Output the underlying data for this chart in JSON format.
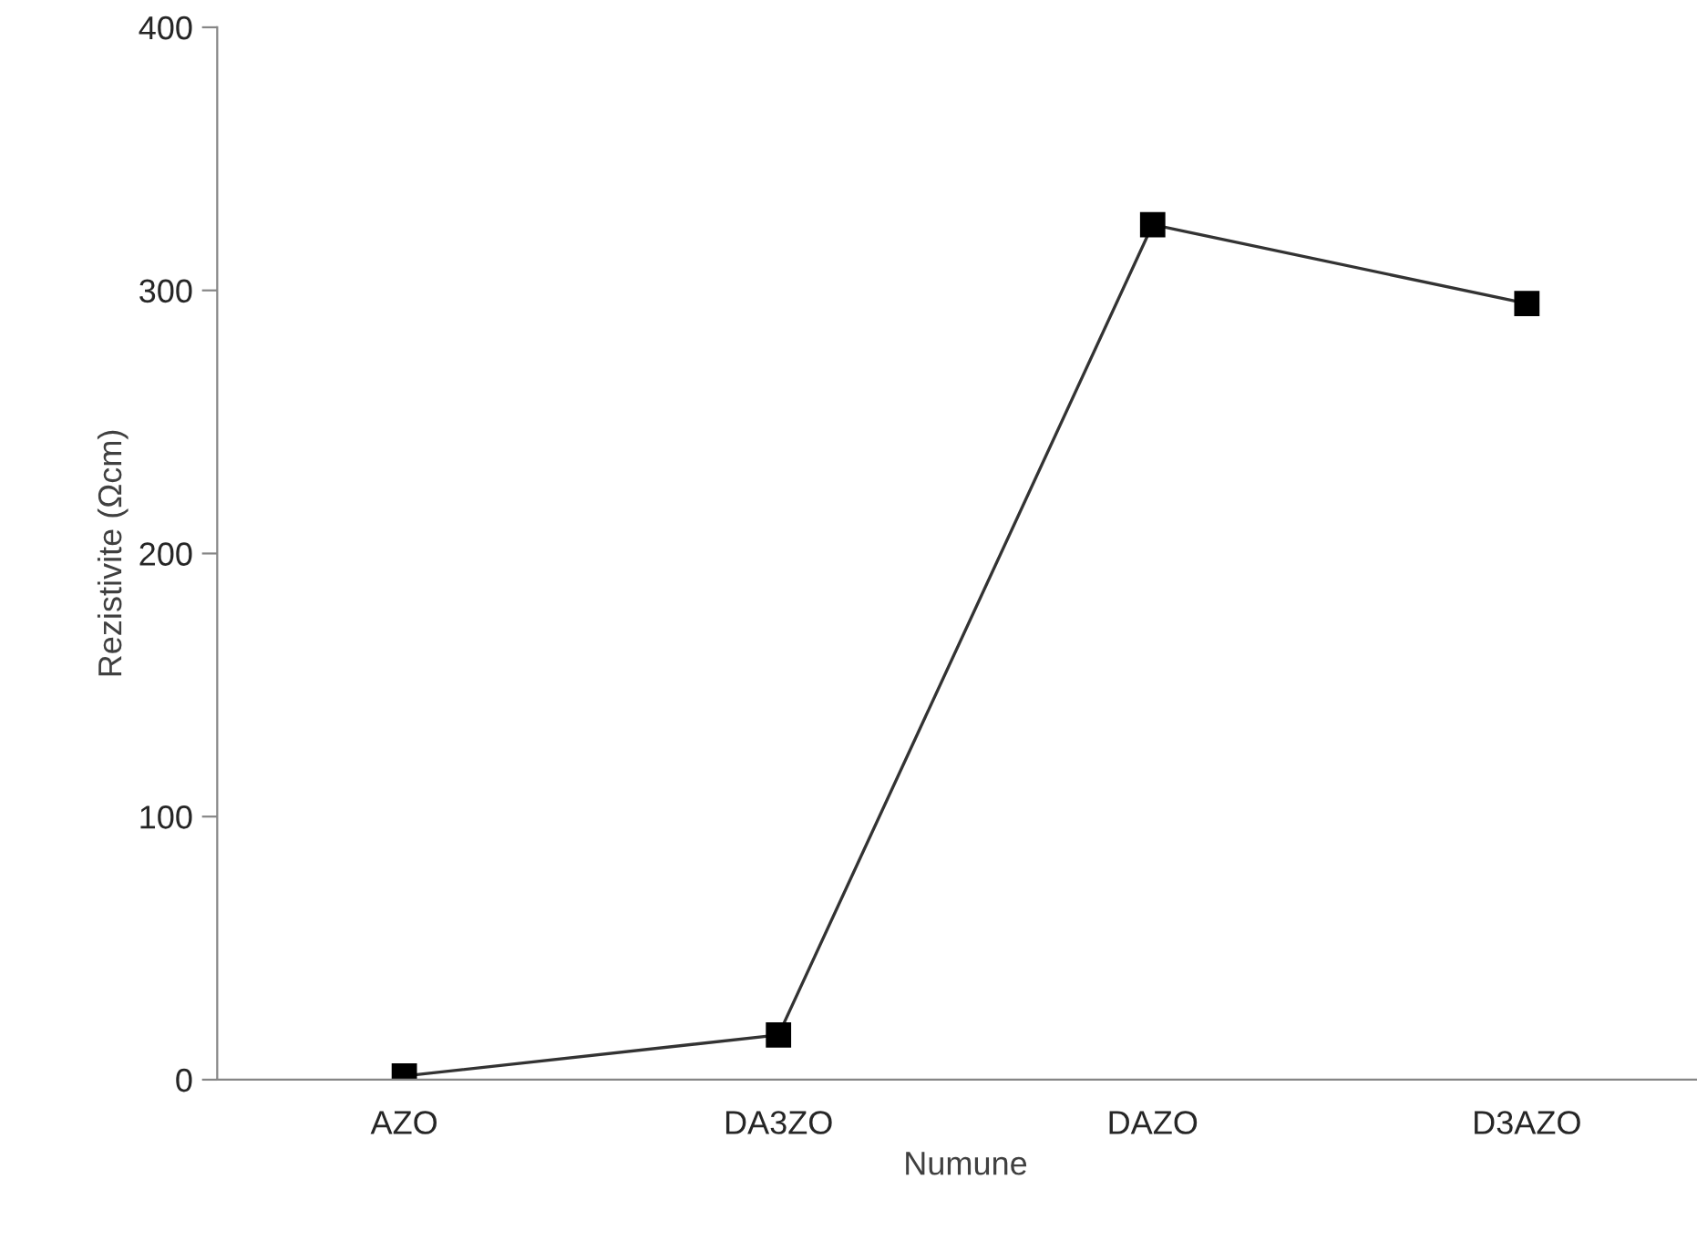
{
  "chart_data": {
    "type": "line",
    "xlabel": "Numune",
    "ylabel": "Rezistivite (Ωcm)",
    "categories": [
      "AZO",
      "DA3ZO",
      "DAZO",
      "D3AZO"
    ],
    "series": [
      {
        "color": "#000000",
        "values": [
          1.4,
          17,
          325,
          295
        ]
      }
    ],
    "ylim": [
      0,
      400
    ],
    "yticks": [
      0,
      100,
      200,
      300,
      400
    ],
    "grid": false,
    "legend": false,
    "marker": "square",
    "line_style": "solid"
  }
}
